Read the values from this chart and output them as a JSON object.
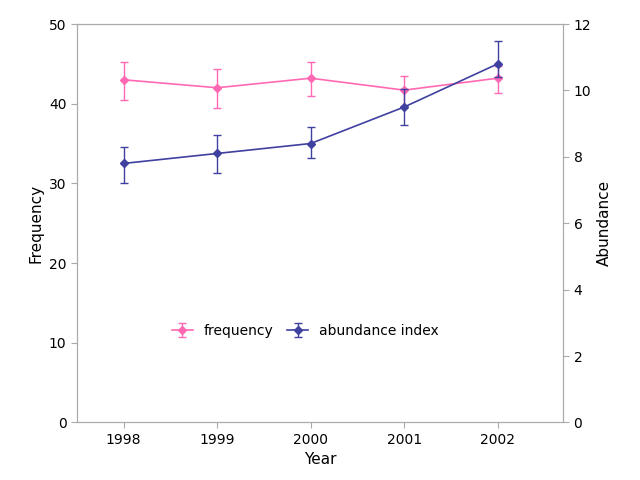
{
  "years": [
    1998,
    1999,
    2000,
    2001,
    2002
  ],
  "freq_values": [
    43.0,
    42.0,
    43.2,
    41.7,
    43.2
  ],
  "freq_yerr_upper": [
    2.2,
    2.3,
    2.0,
    1.8,
    1.5
  ],
  "freq_yerr_lower": [
    2.5,
    2.5,
    2.2,
    2.0,
    1.8
  ],
  "abund_values": [
    7.8,
    8.1,
    8.4,
    9.5,
    10.8
  ],
  "abund_yerr_upper": [
    0.5,
    0.55,
    0.5,
    0.55,
    0.7
  ],
  "abund_yerr_lower": [
    0.6,
    0.6,
    0.45,
    0.55,
    0.4
  ],
  "freq_color": "#FF69B4",
  "abund_color": "#4040A0",
  "ylabel_left": "Frequency",
  "ylabel_right": "Abundance",
  "xlabel": "Year",
  "ylim_left": [
    0,
    50
  ],
  "ylim_right": [
    0,
    12
  ],
  "yticks_left": [
    0,
    10,
    20,
    30,
    40,
    50
  ],
  "yticks_right": [
    0,
    2,
    4,
    6,
    8,
    10,
    12
  ],
  "legend_freq": "frequency",
  "legend_abund": "abundance index",
  "background_color": "#ffffff",
  "spine_color": "#aaaaaa",
  "xlim": [
    1997.5,
    2002.7
  ]
}
